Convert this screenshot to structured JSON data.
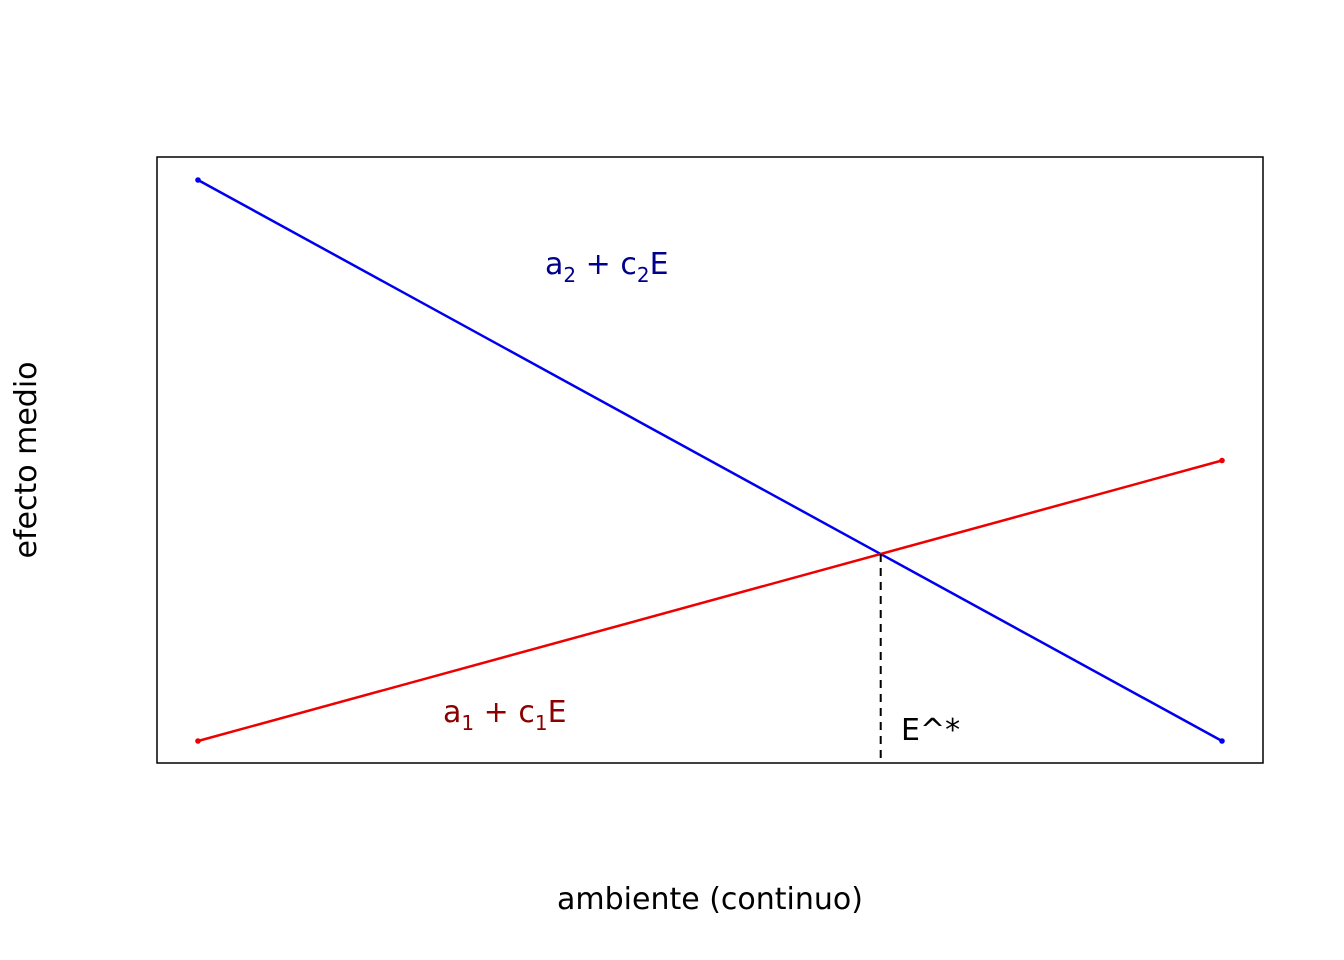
{
  "chart_data": {
    "type": "line",
    "title": "",
    "xlabel": "ambiente (continuo)",
    "ylabel": "efecto medio",
    "xlim": [
      0,
      1
    ],
    "ylim": [
      0,
      1
    ],
    "grid": false,
    "axes_ticks": false,
    "series": [
      {
        "id": "treatment-2",
        "color": "#0000ee",
        "x": [
          0,
          1
        ],
        "y": [
          1.0,
          0.0
        ]
      },
      {
        "id": "treatment-1",
        "color": "#ee0000",
        "x": [
          0,
          1
        ],
        "y": [
          0.0,
          0.5
        ]
      }
    ],
    "annotations": {
      "line2": {
        "a": "a",
        "a_sub": "2",
        "plus": " + ",
        "c": "c",
        "c_sub": "2",
        "e": "E",
        "color": "#00008b"
      },
      "line1": {
        "a": "a",
        "a_sub": "1",
        "plus": " + ",
        "c": "c",
        "c_sub": "1",
        "e": "E",
        "color": "#8b0000"
      },
      "crossover": {
        "label": "E^*",
        "x": 0.6667,
        "y": 0.3333,
        "style": "dashed",
        "color": "#000000"
      }
    }
  }
}
